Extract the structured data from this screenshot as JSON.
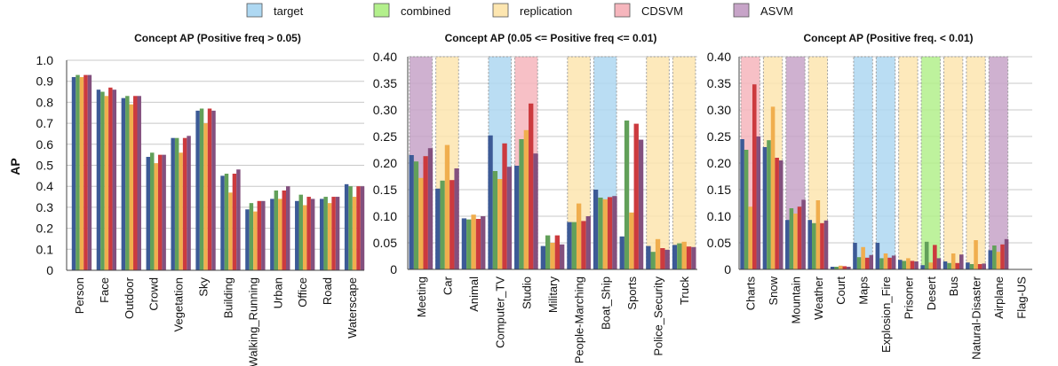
{
  "legend": [
    {
      "label": "target",
      "color": "#aed8f2"
    },
    {
      "label": "combined",
      "color": "#b3f08c"
    },
    {
      "label": "replication",
      "color": "#fde6b0"
    },
    {
      "label": "CDSVM",
      "color": "#f6b6bd"
    },
    {
      "label": "ASVM",
      "color": "#c7a4c8"
    }
  ],
  "series_colors": [
    "#3c5a96",
    "#62a05a",
    "#f0ae4e",
    "#cc3a3e",
    "#83507e"
  ],
  "chart_data": [
    {
      "type": "bar",
      "title": "Concept AP (Positive freq > 0.05)",
      "ylabel": "AP",
      "ylim": [
        0,
        1.0
      ],
      "yticks": [
        "0",
        "0.1",
        "0.2",
        "0.3",
        "0.4",
        "0.5",
        "0.6",
        "0.7",
        "0.8",
        "0.9",
        "1.0"
      ],
      "grid": true,
      "categories": [
        "Person",
        "Face",
        "Outdoor",
        "Crowd",
        "Vegetation",
        "Sky",
        "Building",
        "Walking_Running",
        "Urban",
        "Office",
        "Road",
        "Waterscape"
      ],
      "highlights": [],
      "series": [
        {
          "values": [
            0.92,
            0.86,
            0.82,
            0.54,
            0.63,
            0.76,
            0.45,
            0.29,
            0.34,
            0.33,
            0.34,
            0.41
          ]
        },
        {
          "values": [
            0.93,
            0.85,
            0.83,
            0.56,
            0.63,
            0.77,
            0.46,
            0.32,
            0.38,
            0.36,
            0.35,
            0.4
          ]
        },
        {
          "values": [
            0.92,
            0.83,
            0.79,
            0.51,
            0.56,
            0.7,
            0.37,
            0.28,
            0.34,
            0.31,
            0.32,
            0.35
          ]
        },
        {
          "values": [
            0.93,
            0.87,
            0.83,
            0.55,
            0.63,
            0.77,
            0.46,
            0.33,
            0.38,
            0.35,
            0.35,
            0.4
          ]
        },
        {
          "values": [
            0.93,
            0.86,
            0.83,
            0.55,
            0.64,
            0.76,
            0.48,
            0.33,
            0.4,
            0.34,
            0.35,
            0.4
          ]
        }
      ]
    },
    {
      "type": "bar",
      "title": "Concept AP (0.05 <= Positive freq <= 0.01)",
      "ylim": [
        0,
        0.4
      ],
      "yticks": [
        "0",
        "0.05",
        "0.10",
        "0.15",
        "0.20",
        "0.25",
        "0.30",
        "0.35",
        "0.40"
      ],
      "grid": true,
      "categories": [
        "Meeting",
        "Car",
        "Animal",
        "Computer_TV",
        "Studio",
        "Military",
        "People-Marching",
        "Boat_Ship",
        "Sports",
        "Police_Security",
        "Truck"
      ],
      "highlights": [
        "ASVM",
        "replication",
        null,
        "target",
        "CDSVM",
        null,
        "replication",
        "target",
        null,
        "replication",
        "replication"
      ],
      "series": [
        {
          "values": [
            0.215,
            0.152,
            0.096,
            0.252,
            0.195,
            0.044,
            0.089,
            0.15,
            0.062,
            0.044,
            0.046
          ]
        },
        {
          "values": [
            0.203,
            0.167,
            0.094,
            0.185,
            0.245,
            0.064,
            0.089,
            0.135,
            0.28,
            0.033,
            0.049
          ]
        },
        {
          "values": [
            0.172,
            0.234,
            0.103,
            0.17,
            0.262,
            0.05,
            0.124,
            0.132,
            0.107,
            0.057,
            0.052
          ]
        },
        {
          "values": [
            0.213,
            0.168,
            0.095,
            0.237,
            0.312,
            0.064,
            0.091,
            0.136,
            0.274,
            0.04,
            0.043
          ]
        },
        {
          "values": [
            0.228,
            0.19,
            0.1,
            0.193,
            0.218,
            0.047,
            0.1,
            0.138,
            0.244,
            0.037,
            0.042
          ]
        }
      ]
    },
    {
      "type": "bar",
      "title": "Concept AP (Positive freq. < 0.01)",
      "ylim": [
        0,
        0.4
      ],
      "yticks": [
        "0",
        "0.05",
        "0.10",
        "0.15",
        "0.20",
        "0.25",
        "0.30",
        "0.35",
        "0.40"
      ],
      "grid": true,
      "categories": [
        "Charts",
        "Snow",
        "Mountain",
        "Weather",
        "Court",
        "Maps",
        "Explosion_Fire",
        "Prisoner",
        "Desert",
        "Bus",
        "Natural-Disaster",
        "Airplane",
        "Flag-US"
      ],
      "highlights": [
        "CDSVM",
        "replication",
        "ASVM",
        "replication",
        null,
        "target",
        "target",
        "replication",
        "combined",
        "replication",
        "replication",
        "ASVM",
        null
      ],
      "series": [
        {
          "values": [
            0.245,
            0.23,
            0.093,
            0.093,
            0.005,
            0.05,
            0.05,
            0.018,
            0.008,
            0.015,
            0.013,
            0.036,
            0.0
          ]
        },
        {
          "values": [
            0.225,
            0.243,
            0.115,
            0.087,
            0.005,
            0.023,
            0.021,
            0.016,
            0.052,
            0.012,
            0.01,
            0.045,
            0.0
          ]
        },
        {
          "values": [
            0.118,
            0.306,
            0.105,
            0.13,
            0.007,
            0.042,
            0.03,
            0.021,
            0.013,
            0.03,
            0.055,
            0.033,
            0.0
          ]
        },
        {
          "values": [
            0.348,
            0.21,
            0.118,
            0.087,
            0.006,
            0.022,
            0.022,
            0.016,
            0.046,
            0.012,
            0.01,
            0.047,
            0.0
          ]
        },
        {
          "values": [
            0.25,
            0.205,
            0.131,
            0.092,
            0.005,
            0.027,
            0.026,
            0.015,
            0.021,
            0.028,
            0.011,
            0.057,
            0.0
          ]
        }
      ]
    }
  ]
}
